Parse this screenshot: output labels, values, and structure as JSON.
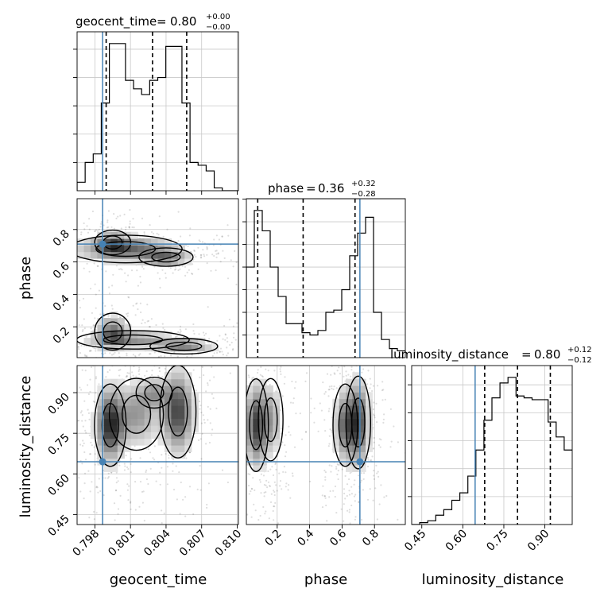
{
  "chart_data": [
    {
      "type": "histogram",
      "panel": "geocent_time-1d",
      "title_param": "geocent_time",
      "title_value": "0.80",
      "title_plus": "+0.00",
      "title_minus": "−0.00",
      "xlim": [
        0.7965,
        0.8101
      ],
      "x_ticks": [
        "0.798",
        "0.801",
        "0.804",
        "0.807",
        "0.810"
      ],
      "x_tick_values": [
        0.798,
        0.801,
        0.804,
        0.807,
        0.81
      ],
      "bin_edges_start": 0.7965,
      "bin_width": 0.00068,
      "counts": [
        3,
        10,
        13,
        31,
        52,
        52,
        39,
        36,
        34,
        39,
        40,
        51,
        51,
        31,
        10,
        9,
        7,
        1,
        0,
        0
      ],
      "quantiles": [
        0.79895,
        0.80286,
        0.80574
      ],
      "truth": 0.79865
    },
    {
      "type": "scatter",
      "panel": "phase-vs-geocent_time",
      "xlabel": "",
      "ylabel": "phase",
      "xlim": [
        0.7965,
        0.8101
      ],
      "ylim": [
        0.01,
        0.99
      ],
      "y_ticks": [
        "0.2",
        "0.4",
        "0.6",
        "0.8"
      ],
      "y_tick_values": [
        0.2,
        0.4,
        0.6,
        0.8
      ],
      "contour_components": [
        {
          "x": 0.8006,
          "y": 0.68,
          "sx": 0.0025,
          "sy": 0.045,
          "w": 1.0
        },
        {
          "x": 0.7995,
          "y": 0.72,
          "sx": 0.0008,
          "sy": 0.04,
          "w": 0.7
        },
        {
          "x": 0.804,
          "y": 0.63,
          "sx": 0.0012,
          "sy": 0.03,
          "w": 0.8
        },
        {
          "x": 0.7995,
          "y": 0.17,
          "sx": 0.0008,
          "sy": 0.06,
          "w": 0.9
        },
        {
          "x": 0.8012,
          "y": 0.12,
          "sx": 0.0025,
          "sy": 0.03,
          "w": 0.7
        },
        {
          "x": 0.8055,
          "y": 0.08,
          "sx": 0.0015,
          "sy": 0.025,
          "w": 0.8
        }
      ],
      "truth": {
        "x": 0.79865,
        "y": 0.71
      }
    },
    {
      "type": "scatter",
      "panel": "luminosity_distance-vs-geocent_time",
      "xlabel": "geocent_time",
      "ylabel": "luminosity_distance",
      "xlim": [
        0.7965,
        0.8101
      ],
      "ylim": [
        0.413,
        1.0
      ],
      "x_ticks": [
        "0.798",
        "0.801",
        "0.804",
        "0.807",
        "0.810"
      ],
      "x_tick_values": [
        0.798,
        0.801,
        0.804,
        0.807,
        0.81
      ],
      "y_ticks": [
        "0.45",
        "0.60",
        "0.75",
        "0.90"
      ],
      "y_tick_values": [
        0.45,
        0.6,
        0.75,
        0.9
      ],
      "contour_components": [
        {
          "x": 0.7993,
          "y": 0.78,
          "sx": 0.0007,
          "sy": 0.08,
          "w": 1.0
        },
        {
          "x": 0.8015,
          "y": 0.82,
          "sx": 0.0012,
          "sy": 0.07,
          "w": 0.5
        },
        {
          "x": 0.805,
          "y": 0.83,
          "sx": 0.0008,
          "sy": 0.09,
          "w": 0.9
        },
        {
          "x": 0.803,
          "y": 0.9,
          "sx": 0.0008,
          "sy": 0.03,
          "w": 0.4
        }
      ],
      "truth": {
        "x": 0.79865,
        "y": 0.645
      }
    },
    {
      "type": "histogram",
      "panel": "phase-1d",
      "title_param": "phase",
      "title_value": "0.36",
      "title_plus": "+0.32",
      "title_minus": "−0.28",
      "xlim": [
        0.01,
        0.99
      ],
      "bin_edges_start": 0.01,
      "bin_width": 0.049,
      "counts": [
        40,
        65,
        56,
        40,
        27,
        15,
        15,
        11,
        10,
        12,
        20,
        21,
        30,
        45,
        55,
        62,
        20,
        8,
        4,
        3
      ],
      "quantiles": [
        0.08,
        0.36,
        0.68
      ],
      "truth": 0.71
    },
    {
      "type": "scatter",
      "panel": "luminosity_distance-vs-phase",
      "xlabel": "phase",
      "ylabel": "",
      "xlim": [
        0.01,
        0.99
      ],
      "ylim": [
        0.413,
        1.0
      ],
      "x_ticks": [
        "0.2",
        "0.4",
        "0.6",
        "0.8"
      ],
      "x_tick_values": [
        0.2,
        0.4,
        0.6,
        0.8
      ],
      "contour_components": [
        {
          "x": 0.07,
          "y": 0.78,
          "sx": 0.04,
          "sy": 0.09,
          "w": 1.0
        },
        {
          "x": 0.16,
          "y": 0.8,
          "sx": 0.04,
          "sy": 0.08,
          "w": 0.5
        },
        {
          "x": 0.62,
          "y": 0.78,
          "sx": 0.04,
          "sy": 0.08,
          "w": 0.8
        },
        {
          "x": 0.7,
          "y": 0.79,
          "sx": 0.04,
          "sy": 0.09,
          "w": 1.0
        }
      ],
      "truth": {
        "x": 0.71,
        "y": 0.645
      }
    },
    {
      "type": "histogram",
      "panel": "luminosity_distance-1d",
      "title_param": "luminosity_distance",
      "title_value": "0.80",
      "title_plus": "+0.12",
      "title_minus": "−0.12",
      "xlabel": "luminosity_distance",
      "xlim": [
        0.413,
        1.0
      ],
      "x_ticks": [
        "0.45",
        "0.60",
        "0.75",
        "0.90"
      ],
      "x_tick_values": [
        0.45,
        0.6,
        0.75,
        0.9
      ],
      "bin_edges_start": 0.413,
      "bin_width": 0.02935,
      "counts": [
        0,
        1,
        2,
        5,
        8,
        13,
        17,
        26,
        40,
        56,
        68,
        76,
        79,
        69,
        68,
        67,
        67,
        55,
        47,
        40
      ],
      "quantiles": [
        0.68,
        0.8,
        0.92
      ],
      "truth": 0.645
    }
  ]
}
